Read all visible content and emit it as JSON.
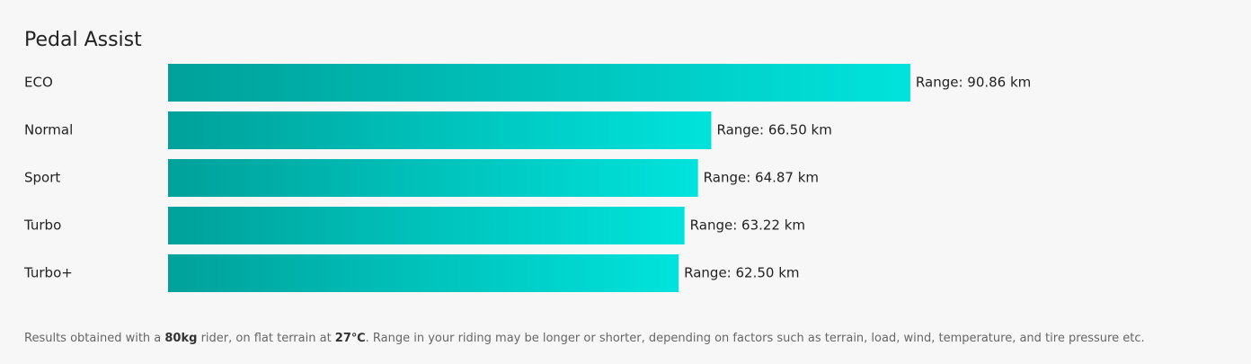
{
  "chart_data": {
    "type": "hbar",
    "title": "Pedal Assist",
    "categories": [
      "ECO",
      "Normal",
      "Sport",
      "Turbo",
      "Turbo+"
    ],
    "values": [
      90.86,
      66.5,
      64.87,
      63.22,
      62.5
    ],
    "value_labels": [
      "Range: 90.86 km",
      "Range: 66.50 km",
      "Range: 64.87 km",
      "Range: 63.22 km",
      "Range: 62.50 km"
    ],
    "gradient": [
      "#00a19a",
      "#00e3dc"
    ],
    "xlim": [
      0,
      100
    ],
    "footnote": [
      "Results obtained with a ",
      "80kg",
      " rider, on flat terrain at ",
      "27℃",
      ". Range in your riding may be longer or shorter, depending on factors such as terrain, load, wind, temperature, and tire pressure etc."
    ]
  }
}
